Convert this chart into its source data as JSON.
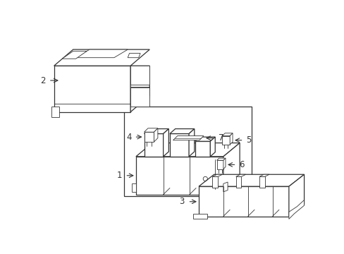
{
  "background_color": "#ffffff",
  "line_color": "#333333",
  "lw": 0.9,
  "tlw": 0.6,
  "label_fontsize": 8.5
}
